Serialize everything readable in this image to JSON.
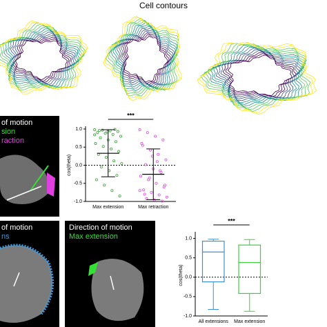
{
  "header": {
    "title": "Cell contours"
  },
  "panels": [
    {
      "lines": [
        {
          "text": "of motion",
          "color": "#ffffff"
        },
        {
          "text": "sion",
          "color": "#33e033"
        },
        {
          "text": "raction",
          "color": "#e040e0"
        }
      ]
    },
    {
      "lines": [
        {
          "text": "of motion",
          "color": "#ffffff"
        },
        {
          "text": "ns",
          "color": "#3b9be0"
        }
      ]
    },
    {
      "lines": [
        {
          "text": "Direction of motion",
          "color": "#ffffff"
        },
        {
          "text": "Max extension",
          "color": "#33e033"
        }
      ]
    }
  ],
  "chart_data": [
    {
      "type": "strip",
      "ylabel": "cos(theta)",
      "annotation": "***",
      "categories": [
        "Max extension",
        "Max retraction"
      ],
      "series": [
        {
          "color": "#3fa03f",
          "values": [
            0.98,
            0.97,
            0.95,
            0.93,
            0.9,
            0.88,
            0.85,
            0.8,
            0.76,
            0.7,
            0.65,
            0.6,
            0.52,
            0.45,
            0.38,
            0.3,
            0.22,
            0.12,
            0.05,
            -0.05,
            -0.15,
            -0.28,
            -0.4,
            -0.55,
            -0.7,
            -0.85,
            0.96,
            0.92,
            0.99,
            0.84
          ]
        },
        {
          "color": "#e050e0",
          "values": [
            0.98,
            0.9,
            0.8,
            0.7,
            0.55,
            0.42,
            0.3,
            0.15,
            0.02,
            -0.1,
            -0.2,
            -0.3,
            -0.4,
            -0.5,
            -0.6,
            -0.68,
            -0.75,
            -0.82,
            -0.88,
            -0.92,
            -0.96,
            -0.99,
            0.6,
            -0.35,
            0.1,
            -0.55,
            -0.8,
            0.25,
            -0.15,
            -0.7
          ]
        }
      ],
      "means": [
        0.33,
        -0.25
      ],
      "errors": [
        0.65,
        0.7
      ],
      "ylim": [
        -1,
        1
      ],
      "yticks": [
        {
          "value": -1,
          "label": "-1.0"
        },
        {
          "value": -0.5,
          "label": "-0.5"
        },
        {
          "value": 0,
          "label": "0.0"
        },
        {
          "value": 0.5,
          "label": "0.5"
        },
        {
          "value": 1,
          "label": "1.0"
        }
      ],
      "zero_line": true
    },
    {
      "type": "box",
      "ylabel": "cos(theta)",
      "annotation": "***",
      "categories": [
        "All extensions",
        "Max extension"
      ],
      "colors": [
        "#3b8fd4",
        "#3ccf3c"
      ],
      "stats": [
        {
          "min": -0.83,
          "q1": -0.12,
          "median": 0.65,
          "q3": 0.93,
          "max": 0.98
        },
        {
          "min": -0.88,
          "q1": -0.42,
          "median": 0.38,
          "q3": 0.83,
          "max": 0.97
        }
      ],
      "ylim": [
        -1,
        1.1
      ],
      "yticks": [
        {
          "value": -1,
          "label": "-1.0"
        },
        {
          "value": -0.5,
          "label": "-0.5"
        },
        {
          "value": 0,
          "label": "0.0"
        },
        {
          "value": 0.5,
          "label": "0.5"
        },
        {
          "value": 1,
          "label": "1.0"
        }
      ],
      "zero_line": true
    }
  ]
}
